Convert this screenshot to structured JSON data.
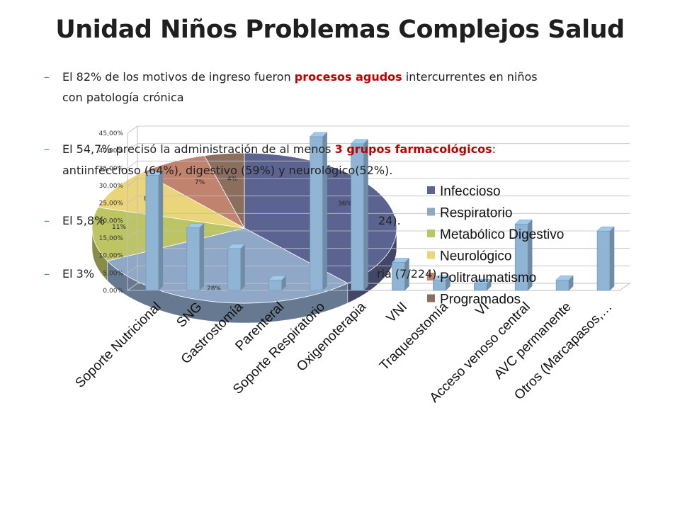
{
  "slide": {
    "title": "Unidad Niños Problemas Complejos Salud",
    "bullets": [
      {
        "pre": "El 82% de los motivos de ingreso fueron ",
        "hl": "procesos agudos",
        "post": " intercurrentes en niños",
        "line2": "con patología crónica"
      },
      {
        "pre": "El 54,7% precisó la administración de al menos ",
        "hl": "3 grupos farmacológicos",
        "post": ":",
        "line2": "antiinfeccioso (64%), digestivo (59%) y neurológico(52%)."
      },
      {
        "pre": "El 5,8%",
        "hl": "",
        "post": "",
        "tail": "24).",
        "line2": ""
      },
      {
        "pre": "El 3%",
        "hl": "",
        "post": "",
        "tail": "ria (7/224).",
        "line2": ""
      }
    ]
  },
  "chart_data": [
    {
      "type": "pie",
      "labels": [
        "Infeccioso",
        "Respiratorio",
        "Metabólico Digestivo",
        "Neurológico",
        "Politraumatismo",
        "Programados"
      ],
      "values": [
        36,
        28,
        11,
        8.4,
        7,
        4
      ],
      "data_labels": [
        "36%",
        "28%",
        "11%",
        "8,4",
        "7%",
        "4%"
      ],
      "colors": [
        "#5b6390",
        "#8fa8c8",
        "#bcc464",
        "#ead57a",
        "#c1826e",
        "#8c6e5e"
      ],
      "legend": "right",
      "legend_labels": [
        "Infeccioso",
        "Respiratorio",
        "Metabólico Digestivo",
        "Neurológico",
        "Politraumatismo",
        "Programados"
      ]
    },
    {
      "type": "bar",
      "categories": [
        "Soporte Nutricional",
        "SNG",
        "Gastrostomía",
        "Parenteral",
        "Soporte Respiratorio",
        "Oxigenoterapia",
        "VNI",
        "Traqueostomía",
        "VI",
        "Acceso venoso central",
        "AVC permanente",
        "Otros (Marcapasos,…"
      ],
      "values": [
        33,
        18,
        12,
        3,
        44,
        42,
        8,
        3,
        2,
        19,
        3,
        17
      ],
      "ylim": [
        0,
        45
      ],
      "yticks": [
        "0,00%",
        "5,00%",
        "10,00%",
        "15,00%",
        "20,00%",
        "25,00%",
        "30,00%",
        "35,00%",
        "40,00%",
        "45,00%"
      ],
      "bar_color": "#8fb4d4",
      "grid": true
    }
  ]
}
